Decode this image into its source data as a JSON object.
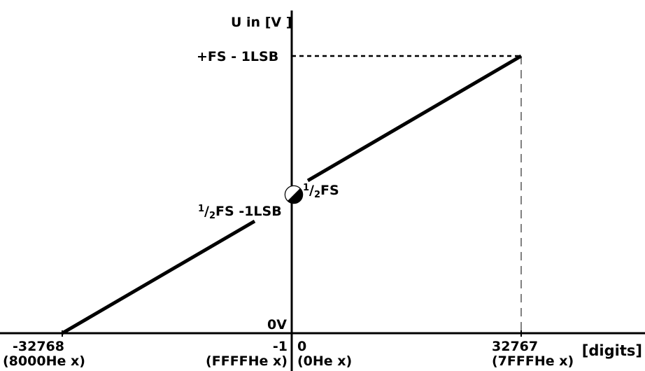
{
  "labels": {
    "y_axis_title": "U in [V ]",
    "fs_max": "+FS - 1LSB",
    "half_fs_num": "1",
    "half_fs_den": "2",
    "half_fs_unit": "FS",
    "half_fs_minus_num": "1",
    "half_fs_minus_den": "2",
    "half_fs_minus_unit": "FS -1LSB",
    "zero_volt": "0V",
    "x_unit": "[digits]"
  },
  "x_ticks": [
    {
      "value": "-32768",
      "hex": "(8000He x)"
    },
    {
      "value": "-1",
      "hex": "(FFFFHe  x)"
    },
    {
      "value": "0",
      "hex": "(0He x)"
    },
    {
      "value": "32767",
      "hex": "(7FFFHe  x)"
    }
  ]
}
